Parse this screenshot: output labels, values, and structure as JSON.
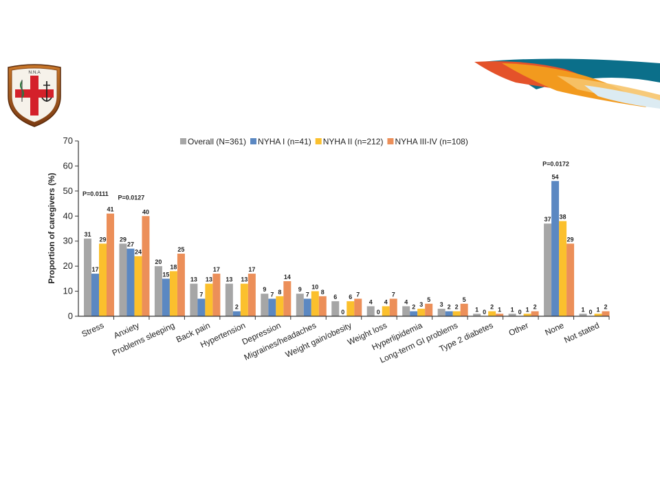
{
  "logo": {
    "text": "N.N.A"
  },
  "colors": {
    "overall": "#a6a6a6",
    "nyha1": "#5b88c2",
    "nyha2": "#fbc02d",
    "nyha34": "#ec8f59",
    "axis": "#333333"
  },
  "chart_data": {
    "type": "bar",
    "ylabel": "Proportion of caregivers (%)",
    "xlabel": "",
    "ylim": [
      0,
      70
    ],
    "yticks": [
      0,
      10,
      20,
      30,
      40,
      50,
      60,
      70
    ],
    "legend_position": "top",
    "categories": [
      "Stress",
      "Anxiety",
      "Problems sleeping",
      "Back pain",
      "Hypertension",
      "Depression",
      "Migraines/headaches",
      "Weight gain/obesity",
      "Weight loss",
      "Hyperlipidemia",
      "Long-term GI problems",
      "Type 2 diabetes",
      "Other",
      "None",
      "Not stated"
    ],
    "series": [
      {
        "name": "Overall (N=361)",
        "values": [
          31,
          29,
          20,
          13,
          13,
          9,
          9,
          6,
          4,
          4,
          3,
          1,
          1,
          37,
          1
        ]
      },
      {
        "name": "NYHA I (n=41)",
        "values": [
          17,
          27,
          15,
          7,
          2,
          7,
          7,
          0,
          0,
          2,
          2,
          0,
          0,
          54,
          0
        ]
      },
      {
        "name": "NYHA II (n=212)",
        "values": [
          29,
          24,
          18,
          13,
          13,
          8,
          10,
          6,
          4,
          3,
          2,
          2,
          1,
          38,
          1
        ]
      },
      {
        "name": "NYHA III-IV (n=108)",
        "values": [
          41,
          40,
          25,
          17,
          17,
          14,
          8,
          7,
          7,
          5,
          5,
          1,
          2,
          29,
          2
        ]
      }
    ],
    "annotations": [
      {
        "text": "P=0.0111",
        "category": "Stress",
        "y": 48
      },
      {
        "text": "P=0.0127",
        "category": "Anxiety",
        "y": 46.5
      },
      {
        "text": "P=0.0172",
        "category": "None",
        "y": 60
      }
    ]
  }
}
